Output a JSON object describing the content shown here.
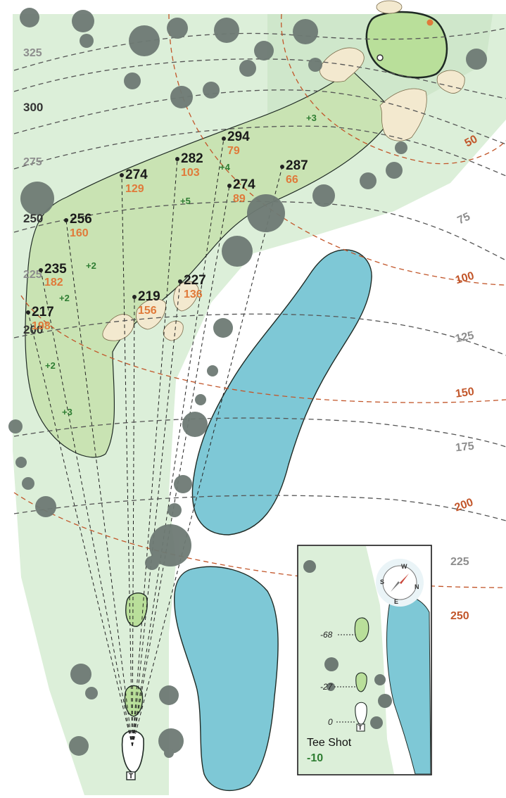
{
  "hole_map": {
    "distance_ticks": [
      {
        "label": "325",
        "style": "grey"
      },
      {
        "label": "300",
        "style": "dark"
      },
      {
        "label": "275",
        "style": "grey"
      },
      {
        "label": "250",
        "style": "dark"
      },
      {
        "label": "225",
        "style": "grey"
      },
      {
        "label": "200",
        "style": "dark"
      }
    ],
    "green_ticks": [
      {
        "label": "50",
        "style": "orange"
      },
      {
        "label": "75",
        "style": "grey"
      },
      {
        "label": "100",
        "style": "orange"
      },
      {
        "label": "125",
        "style": "grey"
      },
      {
        "label": "150",
        "style": "orange"
      },
      {
        "label": "175",
        "style": "grey"
      },
      {
        "label": "200",
        "style": "orange"
      },
      {
        "label": "225",
        "style": "grey"
      },
      {
        "label": "250",
        "style": "orange"
      }
    ],
    "targets": [
      {
        "carry": "294",
        "to_green": "79"
      },
      {
        "carry": "282",
        "to_green": "103"
      },
      {
        "carry": "274",
        "to_green": "129"
      },
      {
        "carry": "287",
        "to_green": "66"
      },
      {
        "carry": "274",
        "to_green": "89"
      },
      {
        "carry": "256",
        "to_green": "160"
      },
      {
        "carry": "235",
        "to_green": "182"
      },
      {
        "carry": "227",
        "to_green": "136"
      },
      {
        "carry": "219",
        "to_green": "156"
      },
      {
        "carry": "217",
        "to_green": "198"
      }
    ],
    "slopes": [
      "+3",
      "+4",
      "+5",
      "+2",
      "+2",
      "+2",
      "+3"
    ],
    "colors": {
      "rough": "#dcefd9",
      "fairway": "#c9e3b3",
      "green": "#b9df9a",
      "water": "#7ec8d6",
      "bunker": "#f3e9cf",
      "tree": "#6e7a74",
      "yardage_orange": "#e07a3a",
      "slope_green": "#2e7d32"
    }
  },
  "inset": {
    "markers": [
      "-68",
      "-27",
      "0"
    ],
    "title": "Tee Shot",
    "value": "-10",
    "compass_letters": [
      "W",
      "N",
      "E",
      "S"
    ],
    "tee_symbol": "T"
  }
}
